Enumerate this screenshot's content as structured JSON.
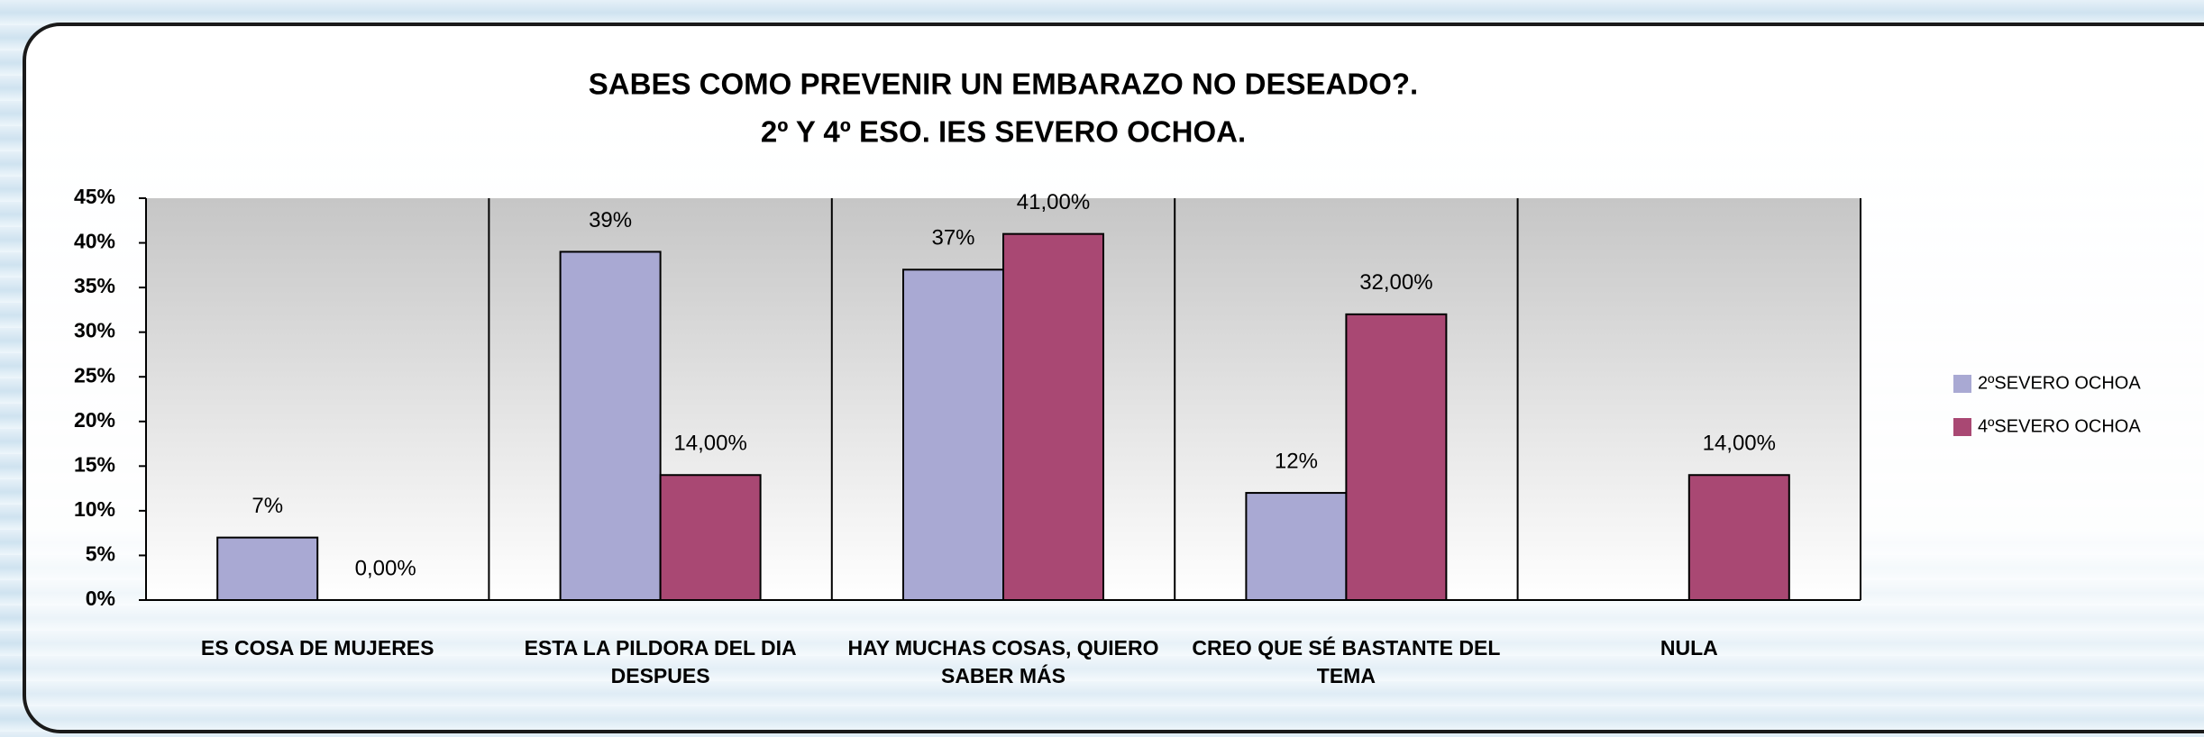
{
  "chart_data": {
    "type": "bar",
    "title": "SABES COMO PREVENIR UN EMBARAZO NO DESEADO?.",
    "subtitle": "2º Y 4º ESO. IES SEVERO OCHOA.",
    "categories": [
      "ES COSA DE MUJERES",
      "ESTA LA PILDORA DEL DIA DESPUES",
      "HAY MUCHAS COSAS, QUIERO SABER MÁS",
      "CREO QUE SÉ BASTANTE DEL TEMA",
      "NULA"
    ],
    "series": [
      {
        "name": "2ºSEVERO OCHOA",
        "color": "#a9a9d3",
        "values": [
          7,
          39,
          37,
          12,
          null
        ],
        "value_labels": [
          "7%",
          "39%",
          "37%",
          "12%",
          null
        ]
      },
      {
        "name": "4ºSEVERO OCHOA",
        "color": "#a94873",
        "values": [
          0,
          14,
          41,
          32,
          14
        ],
        "value_labels": [
          "0,00%",
          "14,00%",
          "41,00%",
          "32,00%",
          "14,00%"
        ]
      }
    ],
    "ylim": [
      0,
      45
    ],
    "yticks": [
      {
        "value": 0,
        "label": "0%"
      },
      {
        "value": 5,
        "label": "5%"
      },
      {
        "value": 10,
        "label": "10%"
      },
      {
        "value": 15,
        "label": "15%"
      },
      {
        "value": 20,
        "label": "20%"
      },
      {
        "value": 25,
        "label": "25%"
      },
      {
        "value": 30,
        "label": "30%"
      },
      {
        "value": 35,
        "label": "35%"
      },
      {
        "value": 40,
        "label": "40%"
      },
      {
        "value": 45,
        "label": "45%"
      }
    ],
    "legend": "right"
  }
}
